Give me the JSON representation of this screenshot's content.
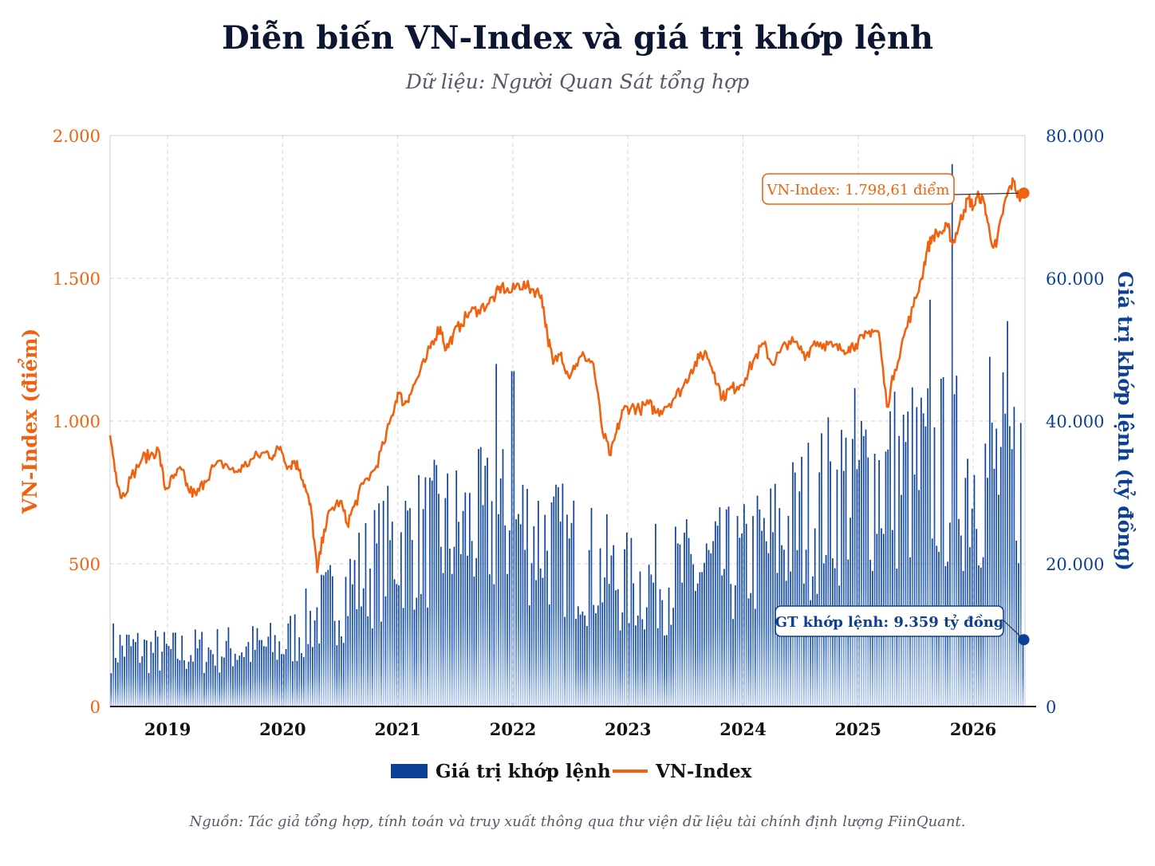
{
  "title": "Diễn biến VN-Index và giá trị khớp lệnh",
  "subtitle": "Dữ liệu: Người Quan Sát tổng hợp",
  "source": "Nguồn: Tác giả tổng hợp, tính toán và truy xuất thông qua thư viện dữ liệu tài chính định lượng FiinQuant.",
  "colors": {
    "index": "#f0620f",
    "volume": "#0d3f94",
    "title": "#0c1633"
  },
  "chart_data": {
    "type": "line+bar",
    "grid": true,
    "legend_position": "bottom-center",
    "xlim": [
      2018.5,
      2026.45
    ],
    "x_tick_labels": [
      "2019",
      "2020",
      "2021",
      "2022",
      "2023",
      "2024",
      "2025",
      "2026"
    ],
    "x_ticks": [
      2019,
      2020,
      2021,
      2022,
      2023,
      2024,
      2025,
      2026
    ],
    "left_axis": {
      "label": "VN-Index (điểm)",
      "ylim": [
        0,
        2000
      ],
      "ticks": [
        0,
        500,
        1000,
        1500,
        2000
      ],
      "tick_labels": [
        "0",
        "500",
        "1.000",
        "1.500",
        "2.000"
      ]
    },
    "right_axis": {
      "label": "Giá trị khớp lệnh (tỷ đồng)",
      "ylim": [
        0,
        80000
      ],
      "ticks": [
        0,
        20000,
        40000,
        60000,
        80000
      ],
      "tick_labels": [
        "0",
        "20.000",
        "40.000",
        "60.000",
        "80.000"
      ]
    },
    "series": [
      {
        "name": "VN-Index",
        "type": "line",
        "axis": "left",
        "points": [
          [
            2018.5,
            950
          ],
          [
            2018.55,
            820
          ],
          [
            2018.6,
            730
          ],
          [
            2018.68,
            800
          ],
          [
            2018.78,
            870
          ],
          [
            2018.85,
            880
          ],
          [
            2018.92,
            900
          ],
          [
            2018.98,
            760
          ],
          [
            2019.05,
            800
          ],
          [
            2019.12,
            830
          ],
          [
            2019.18,
            760
          ],
          [
            2019.25,
            740
          ],
          [
            2019.32,
            790
          ],
          [
            2019.4,
            840
          ],
          [
            2019.5,
            850
          ],
          [
            2019.58,
            820
          ],
          [
            2019.66,
            840
          ],
          [
            2019.75,
            870
          ],
          [
            2019.85,
            890
          ],
          [
            2019.92,
            880
          ],
          [
            2019.98,
            910
          ],
          [
            2020.05,
            840
          ],
          [
            2020.1,
            860
          ],
          [
            2020.15,
            830
          ],
          [
            2020.2,
            760
          ],
          [
            2020.25,
            680
          ],
          [
            2020.3,
            470
          ],
          [
            2020.36,
            620
          ],
          [
            2020.42,
            690
          ],
          [
            2020.5,
            720
          ],
          [
            2020.56,
            640
          ],
          [
            2020.62,
            700
          ],
          [
            2020.7,
            780
          ],
          [
            2020.8,
            830
          ],
          [
            2020.88,
            920
          ],
          [
            2020.95,
            1020
          ],
          [
            2021.0,
            1100
          ],
          [
            2021.06,
            1060
          ],
          [
            2021.1,
            1090
          ],
          [
            2021.17,
            1150
          ],
          [
            2021.25,
            1220
          ],
          [
            2021.3,
            1280
          ],
          [
            2021.37,
            1330
          ],
          [
            2021.42,
            1250
          ],
          [
            2021.48,
            1300
          ],
          [
            2021.55,
            1340
          ],
          [
            2021.62,
            1380
          ],
          [
            2021.7,
            1390
          ],
          [
            2021.78,
            1410
          ],
          [
            2021.85,
            1440
          ],
          [
            2021.9,
            1470
          ],
          [
            2021.98,
            1450
          ],
          [
            2022.05,
            1480
          ],
          [
            2022.12,
            1470
          ],
          [
            2022.18,
            1460
          ],
          [
            2022.25,
            1440
          ],
          [
            2022.3,
            1300
          ],
          [
            2022.35,
            1200
          ],
          [
            2022.42,
            1240
          ],
          [
            2022.48,
            1160
          ],
          [
            2022.55,
            1200
          ],
          [
            2022.62,
            1230
          ],
          [
            2022.7,
            1200
          ],
          [
            2022.78,
            960
          ],
          [
            2022.85,
            880
          ],
          [
            2022.9,
            960
          ],
          [
            2022.96,
            1040
          ],
          [
            2023.03,
            1050
          ],
          [
            2023.1,
            1040
          ],
          [
            2023.18,
            1060
          ],
          [
            2023.25,
            1030
          ],
          [
            2023.32,
            1050
          ],
          [
            2023.4,
            1080
          ],
          [
            2023.48,
            1120
          ],
          [
            2023.55,
            1180
          ],
          [
            2023.62,
            1220
          ],
          [
            2023.68,
            1240
          ],
          [
            2023.75,
            1170
          ],
          [
            2023.82,
            1080
          ],
          [
            2023.88,
            1110
          ],
          [
            2023.95,
            1120
          ],
          [
            2024.02,
            1150
          ],
          [
            2024.1,
            1220
          ],
          [
            2024.18,
            1270
          ],
          [
            2024.25,
            1200
          ],
          [
            2024.32,
            1240
          ],
          [
            2024.4,
            1280
          ],
          [
            2024.48,
            1260
          ],
          [
            2024.55,
            1230
          ],
          [
            2024.62,
            1280
          ],
          [
            2024.7,
            1270
          ],
          [
            2024.78,
            1260
          ],
          [
            2024.85,
            1250
          ],
          [
            2024.92,
            1260
          ],
          [
            2024.98,
            1270
          ],
          [
            2025.05,
            1290
          ],
          [
            2025.12,
            1320
          ],
          [
            2025.18,
            1310
          ],
          [
            2025.25,
            1050
          ],
          [
            2025.32,
            1180
          ],
          [
            2025.4,
            1300
          ],
          [
            2025.48,
            1400
          ],
          [
            2025.55,
            1500
          ],
          [
            2025.6,
            1600
          ],
          [
            2025.65,
            1650
          ],
          [
            2025.72,
            1660
          ],
          [
            2025.78,
            1680
          ],
          [
            2025.82,
            1620
          ],
          [
            2025.88,
            1690
          ],
          [
            2025.92,
            1740
          ],
          [
            2025.96,
            1780
          ],
          [
            2026.0,
            1750
          ],
          [
            2026.05,
            1790
          ],
          [
            2026.1,
            1760
          ],
          [
            2026.15,
            1640
          ],
          [
            2026.2,
            1610
          ],
          [
            2026.25,
            1720
          ],
          [
            2026.3,
            1800
          ],
          [
            2026.35,
            1840
          ],
          [
            2026.4,
            1780
          ],
          [
            2026.44,
            1798.61
          ]
        ]
      },
      {
        "name": "Giá trị khớp lệnh",
        "type": "bar",
        "axis": "right",
        "note": "weekly bars; yearly average approx.",
        "approx_by_year": [
          {
            "year": 2018.5,
            "value": 8500
          },
          {
            "year": 2019,
            "value": 7500
          },
          {
            "year": 2020,
            "value": 8500
          },
          {
            "year": 2021,
            "value": 23000
          },
          {
            "year": 2022,
            "value": 26000
          },
          {
            "year": 2023,
            "value": 17000
          },
          {
            "year": 2024,
            "value": 20000
          },
          {
            "year": 2025,
            "value": 32000
          },
          {
            "year": 2026,
            "value": 33000
          }
        ],
        "peaks": [
          [
            2021.85,
            48000
          ],
          [
            2022.0,
            47000
          ],
          [
            2025.62,
            57000
          ],
          [
            2025.82,
            76000
          ],
          [
            2026.15,
            49000
          ],
          [
            2026.3,
            54000
          ]
        ]
      }
    ],
    "annotations": [
      {
        "series": "VN-Index",
        "text": "VN-Index: 1.798,61 điểm",
        "x": 2026.44,
        "y": 1798.61
      },
      {
        "series": "Giá trị khớp lệnh",
        "text": "GT khớp lệnh: 9.359 tỷ đồng",
        "x": 2026.44,
        "y": 9359
      }
    ],
    "legend": [
      "Giá trị khớp lệnh",
      "VN-Index"
    ]
  }
}
